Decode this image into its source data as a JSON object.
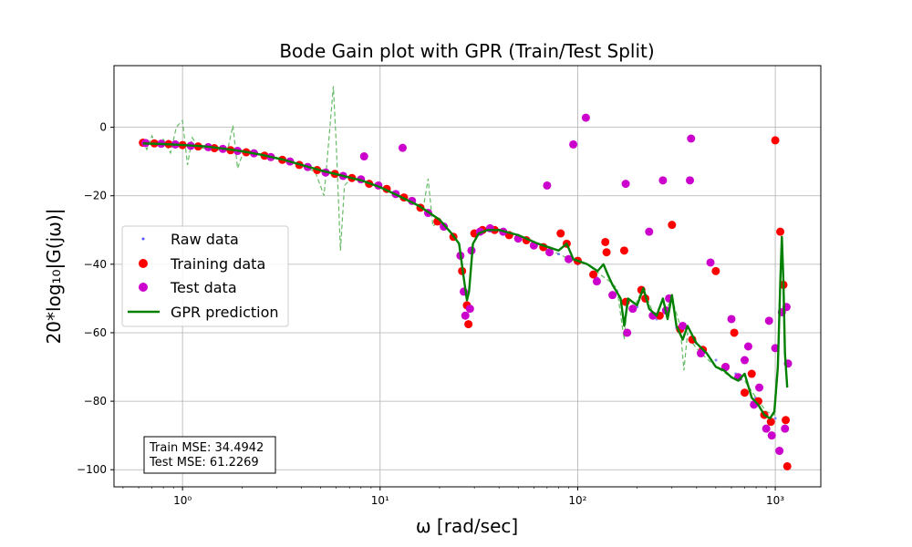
{
  "chart_data": {
    "type": "scatter",
    "title": "Bode Gain plot with GPR (Train/Test Split)",
    "xlabel": "ω [rad/sec]",
    "ylabel": "20*log₁₀|G(jω)|",
    "xscale": "log",
    "xlim": [
      0.45,
      1700
    ],
    "ylim": [
      -105,
      18
    ],
    "x_ticks": [
      {
        "value": 1,
        "label": "10⁰"
      },
      {
        "value": 10,
        "label": "10¹"
      },
      {
        "value": 100,
        "label": "10²"
      },
      {
        "value": 1000,
        "label": "10³"
      }
    ],
    "y_ticks": [
      {
        "value": 0,
        "label": "0"
      },
      {
        "value": -20,
        "label": "−20"
      },
      {
        "value": -40,
        "label": "−40"
      },
      {
        "value": -60,
        "label": "−60"
      },
      {
        "value": -80,
        "label": "−80"
      },
      {
        "value": -100,
        "label": "−100"
      }
    ],
    "grid": true,
    "legend_position": "center-left",
    "colors": {
      "raw": "#5555ff",
      "training": "#ff0000",
      "test": "#cc00cc",
      "gpr": "#008000",
      "uncertainty": "#66bb66"
    },
    "series": [
      {
        "name": "Raw data",
        "kind": "points",
        "x": [
          0.63,
          0.8,
          1.0,
          1.26,
          1.6,
          2.0,
          2.5,
          3.16,
          4.0,
          5.0,
          6.3,
          8.0,
          10.0,
          12.6,
          15.8,
          20.0,
          25.1,
          28.0,
          31.6,
          40.0,
          50.0,
          63.0,
          80.0,
          100.0,
          126.0,
          158.0,
          200.0,
          251.0,
          316.0,
          398.0,
          501.0,
          631.0,
          794.0,
          1000.0,
          1150.0
        ],
        "y": [
          -4.7,
          -4.9,
          -5.2,
          -5.6,
          -6.2,
          -7.0,
          -8.0,
          -9.4,
          -11.0,
          -12.6,
          -14.0,
          -15.5,
          -17.5,
          -20.2,
          -23.0,
          -27.0,
          -37.0,
          -52.0,
          -31.0,
          -30.0,
          -31.5,
          -34.0,
          -37.0,
          -40.0,
          -44.0,
          -48.0,
          -52.5,
          -56.0,
          -58.5,
          -63.0,
          -68.0,
          -72.0,
          -79.0,
          -85.0,
          -88.0
        ]
      },
      {
        "name": "Training data",
        "kind": "points",
        "x": [
          0.63,
          0.72,
          0.85,
          1.0,
          1.2,
          1.45,
          1.75,
          2.1,
          2.6,
          3.2,
          3.9,
          4.8,
          5.9,
          7.2,
          8.8,
          10.8,
          13.2,
          16.0,
          19.5,
          23.5,
          26.0,
          27.5,
          28.0,
          30.0,
          33.0,
          38.0,
          45.0,
          55.0,
          67.0,
          82.0,
          88.0,
          100.0,
          120.0,
          138.0,
          140.0,
          172.0,
          175.0,
          210.0,
          220.0,
          260.0,
          300.0,
          330.0,
          380.0,
          430.0,
          500.0,
          560.0,
          620.0,
          700.0,
          760.0,
          820.0,
          880.0,
          950.0,
          1000.0,
          1060.0,
          1100.0,
          1130.0,
          1150.0
        ],
        "y": [
          -4.5,
          -4.7,
          -4.9,
          -5.2,
          -5.6,
          -6.1,
          -6.7,
          -7.3,
          -8.3,
          -9.5,
          -11.0,
          -12.5,
          -13.6,
          -14.8,
          -16.5,
          -18.0,
          -20.5,
          -23.5,
          -27.5,
          -32.0,
          -42.0,
          -52.0,
          -57.5,
          -31.0,
          -30.0,
          -30.0,
          -31.5,
          -33.0,
          -35.0,
          -31.0,
          -34.0,
          -39.0,
          -43.0,
          -33.5,
          -36.5,
          -36.0,
          -51.0,
          -47.5,
          -50.0,
          -55.0,
          -28.5,
          -59.0,
          -62.0,
          -65.0,
          -42.0,
          -70.0,
          -60.0,
          -77.5,
          -72.0,
          -80.0,
          -84.0,
          -86.0,
          -3.8,
          -30.5,
          -46.0,
          -85.5,
          -99.0
        ]
      },
      {
        "name": "Test data",
        "kind": "points",
        "x": [
          0.65,
          0.78,
          0.92,
          1.1,
          1.35,
          1.6,
          1.9,
          2.3,
          2.8,
          3.5,
          4.3,
          5.3,
          6.5,
          8.0,
          8.3,
          9.8,
          12.0,
          13.0,
          14.5,
          17.5,
          21.0,
          25.5,
          26.5,
          27.0,
          28.5,
          29.0,
          32.0,
          36.0,
          42.0,
          50.0,
          60.0,
          70.0,
          72.0,
          90.0,
          95.0,
          110.0,
          125.0,
          150.0,
          175.0,
          178.0,
          190.0,
          230.0,
          240.0,
          270.0,
          280.0,
          290.0,
          340.0,
          370.0,
          375.0,
          420.0,
          470.0,
          560.0,
          600.0,
          650.0,
          700.0,
          730.0,
          780.0,
          830.0,
          900.0,
          930.0,
          960.0,
          1000.0,
          1050.0,
          1080.0,
          1120.0,
          1140.0,
          1160.0
        ],
        "y": [
          -4.6,
          -4.8,
          -5.0,
          -5.4,
          -5.8,
          -6.3,
          -6.9,
          -7.6,
          -8.7,
          -10.0,
          -11.6,
          -13.2,
          -14.2,
          -15.2,
          -8.5,
          -17.0,
          -19.5,
          -6.0,
          -21.5,
          -25.0,
          -29.0,
          -37.5,
          -48.0,
          -55.0,
          -53.0,
          -36.0,
          -30.5,
          -29.5,
          -30.5,
          -32.5,
          -34.5,
          -17.0,
          -36.5,
          -38.5,
          -5.0,
          2.8,
          -45.0,
          -49.0,
          -16.5,
          -60.0,
          -53.0,
          -30.5,
          -55.0,
          -15.5,
          -53.5,
          -50.0,
          -58.0,
          -15.5,
          -3.3,
          -66.0,
          -39.5,
          -70.0,
          -56.0,
          -73.0,
          -68.0,
          -64.0,
          -81.0,
          -76.0,
          -88.0,
          -56.5,
          -90.0,
          -64.5,
          -94.5,
          -54.0,
          -88.0,
          -52.5,
          -69.0
        ]
      },
      {
        "name": "GPR prediction",
        "kind": "line",
        "x": [
          0.63,
          0.8,
          1.0,
          1.3,
          1.6,
          2.0,
          2.5,
          3.2,
          4.0,
          5.0,
          6.3,
          8.0,
          10.0,
          12.6,
          15.8,
          20.0,
          23.0,
          25.1,
          26.5,
          27.5,
          28.2,
          29.5,
          31.6,
          35.0,
          40.0,
          50.0,
          63.0,
          80.0,
          88.0,
          95.0,
          112.0,
          126.0,
          135.0,
          142.0,
          150.0,
          165.0,
          172.0,
          180.0,
          200.0,
          215.0,
          230.0,
          251.0,
          270.0,
          285.0,
          300.0,
          316.0,
          340.0,
          360.0,
          398.0,
          450.0,
          501.0,
          550.0,
          600.0,
          650.0,
          700.0,
          760.0,
          820.0,
          880.0,
          940.0,
          990.0,
          1030.0,
          1060.0,
          1080.0,
          1100.0,
          1120.0,
          1150.0
        ],
        "y": [
          -4.7,
          -4.9,
          -5.2,
          -5.6,
          -6.2,
          -7.0,
          -8.0,
          -9.4,
          -11.0,
          -12.6,
          -14.0,
          -15.5,
          -17.5,
          -20.2,
          -23.0,
          -27.0,
          -31.0,
          -34.0,
          -44.0,
          -50.5,
          -48.0,
          -34.0,
          -31.0,
          -30.0,
          -30.0,
          -31.5,
          -34.0,
          -36.0,
          -34.0,
          -38.5,
          -40.0,
          -42.0,
          -40.0,
          -43.0,
          -46.0,
          -50.0,
          -58.0,
          -50.0,
          -52.0,
          -47.0,
          -53.0,
          -55.0,
          -50.0,
          -56.0,
          -49.0,
          -58.0,
          -62.0,
          -58.0,
          -63.0,
          -66.0,
          -70.0,
          -71.0,
          -73.0,
          -74.0,
          -72.0,
          -79.0,
          -81.0,
          -84.0,
          -85.0,
          -83.0,
          -70.0,
          -45.0,
          -32.0,
          -45.0,
          -66.0,
          -76.0
        ]
      },
      {
        "name": "",
        "kind": "dashed-line",
        "x": [
          0.63,
          0.66,
          0.7,
          0.74,
          0.8,
          0.87,
          0.93,
          1.0,
          1.06,
          1.12,
          1.2,
          1.3,
          1.42,
          1.55,
          1.7,
          1.8,
          1.9,
          2.05,
          2.3,
          2.7,
          3.2,
          3.9,
          4.7,
          5.2,
          5.5,
          5.8,
          6.0,
          6.3,
          6.6,
          7.0,
          7.5,
          8.2,
          9.0,
          10.0,
          11.5,
          13.0,
          15.0,
          16.5,
          17.5,
          18.5,
          20.0,
          23.0,
          25.1,
          26.5,
          27.5,
          28.2,
          29.5,
          31.6,
          35.0,
          40.0,
          50.0,
          63.0,
          80.0,
          95.0,
          112.0,
          130.0,
          145.0,
          158.0,
          168.0,
          172.0,
          176.0,
          182.0,
          195.0,
          215.0,
          240.0,
          270.0,
          300.0,
          330.0,
          345.0,
          360.0,
          380.0,
          420.0,
          501.0,
          600.0,
          700.0,
          800.0,
          900.0,
          990.0,
          1030.0,
          1060.0,
          1080.0,
          1100.0,
          1120.0,
          1150.0
        ],
        "y": [
          -4.0,
          -6.5,
          -2.5,
          -5.5,
          -3.5,
          -7.5,
          0.0,
          2.0,
          -11.0,
          -3.0,
          -5.8,
          -6.2,
          -6.0,
          -6.8,
          -6.0,
          0.5,
          -12.0,
          -6.5,
          -7.2,
          -8.2,
          -9.3,
          -11.0,
          -13.0,
          -20.0,
          -4.0,
          12.0,
          -5.0,
          -36.0,
          -17.0,
          -15.5,
          -15.0,
          -15.8,
          -16.6,
          -17.5,
          -19.0,
          -20.5,
          -22.5,
          -24.0,
          -15.0,
          -29.0,
          -27.0,
          -31.0,
          -34.0,
          -44.0,
          -50.5,
          -48.0,
          -34.0,
          -31.0,
          -30.0,
          -30.0,
          -31.5,
          -34.0,
          -37.0,
          -39.0,
          -40.0,
          -43.0,
          -45.0,
          -47.0,
          -58.0,
          -62.0,
          -55.0,
          -50.0,
          -52.0,
          -47.0,
          -54.0,
          -55.0,
          -50.0,
          -58.0,
          -71.0,
          -60.0,
          -63.0,
          -66.0,
          -70.0,
          -73.0,
          -74.0,
          -79.0,
          -83.0,
          -84.0,
          -70.0,
          -45.0,
          -32.0,
          -45.0,
          -66.0,
          -76.0
        ]
      }
    ],
    "annotations": [
      {
        "text": "Train MSE: 34.4942"
      },
      {
        "text": "Test MSE: 61.2269"
      }
    ]
  }
}
